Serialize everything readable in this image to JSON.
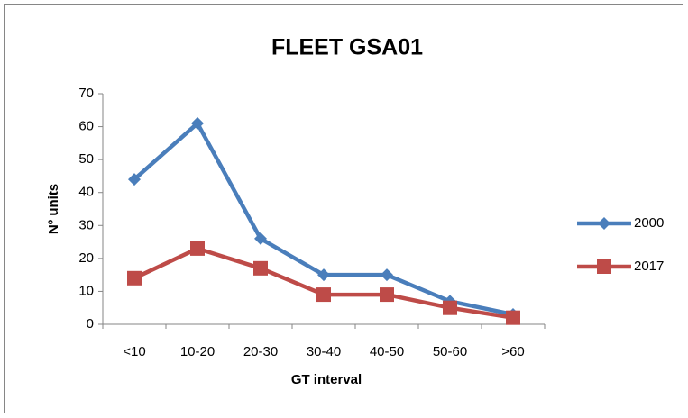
{
  "chart_data": {
    "type": "line",
    "title": "FLEET GSA01",
    "x_label": "GT interval",
    "y_label": "Nº units",
    "categories": [
      "<10",
      "10-20",
      "20-30",
      "30-40",
      "40-50",
      "50-60",
      ">60"
    ],
    "series": [
      {
        "name": "2000",
        "color": "#4a7ebb",
        "marker": "diamond",
        "values": [
          44,
          61,
          26,
          15,
          15,
          7,
          3
        ]
      },
      {
        "name": "2017",
        "color": "#be4b48",
        "marker": "square",
        "values": [
          14,
          23,
          17,
          9,
          9,
          5,
          2
        ]
      }
    ],
    "ylim": [
      0,
      70
    ],
    "yticks": [
      0,
      10,
      20,
      30,
      40,
      50,
      60,
      70
    ],
    "grid": false,
    "legend": "right"
  }
}
